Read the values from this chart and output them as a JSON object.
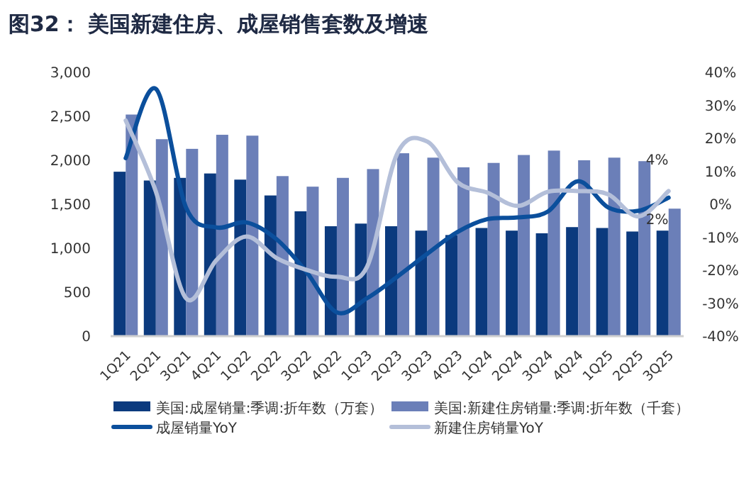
{
  "chart_data": {
    "type": "bar",
    "title": "图32：  美国新建住房、成屋销售套数及增速",
    "categories": [
      "1Q21",
      "2Q21",
      "3Q21",
      "4Q21",
      "1Q22",
      "2Q22",
      "3Q22",
      "4Q22",
      "1Q23",
      "2Q23",
      "3Q23",
      "4Q23",
      "1Q24",
      "2Q24",
      "3Q24",
      "4Q24",
      "1Q25",
      "2Q25",
      "3Q25"
    ],
    "series": [
      {
        "name": "美国:成屋销量:季调:折年数（万套）",
        "type": "bar",
        "color": "#0b3a7e",
        "values": [
          1870,
          1770,
          1800,
          1850,
          1780,
          1600,
          1420,
          1250,
          1280,
          1250,
          1200,
          1150,
          1230,
          1200,
          1170,
          1240,
          1230,
          1190,
          1200
        ]
      },
      {
        "name": "美国:新建住房销量:季调:折年数（千套）",
        "type": "bar",
        "color": "#6b7fb8",
        "values": [
          2520,
          2240,
          2130,
          2290,
          2280,
          1820,
          1700,
          1800,
          1900,
          2080,
          2030,
          1920,
          1970,
          2060,
          2110,
          2000,
          2030,
          1990,
          1450
        ]
      },
      {
        "name": "成屋销量YoY",
        "type": "line",
        "axis": "y2",
        "color": "#0b4f9c",
        "values": [
          14,
          35,
          -1,
          -7,
          -5.5,
          -10.6,
          -20.6,
          -32.8,
          -28.5,
          -22,
          -15,
          -8.4,
          -4.5,
          -4,
          -2.2,
          7,
          -1,
          -2,
          2
        ]
      },
      {
        "name": "新建住房销量YoY",
        "type": "line",
        "axis": "y2",
        "color": "#b4bfd9",
        "values": [
          25.4,
          3.8,
          -28.5,
          -17,
          -9.8,
          -16.3,
          -19.9,
          -22,
          -19,
          15.3,
          19,
          6.7,
          3.5,
          -0.5,
          3.8,
          4,
          3,
          -3.7,
          4
        ]
      }
    ],
    "ylim": [
      0,
      3000
    ],
    "yticks": [
      0,
      500,
      {
        "value": 1000,
        "label": "1,000"
      },
      {
        "value": 1500,
        "label": "1,500"
      },
      {
        "value": 2000,
        "label": "2,000"
      },
      {
        "value": 2500,
        "label": "2,500"
      },
      {
        "value": 3000,
        "label": "3,000"
      }
    ],
    "y2lim": [
      -40,
      40
    ],
    "y2ticks": [
      {
        "value": -40,
        "label": "-40%"
      },
      {
        "value": -30,
        "label": "-30%"
      },
      {
        "value": -20,
        "label": "-20%"
      },
      {
        "value": -10,
        "label": "-10%"
      },
      {
        "value": 0,
        "label": "0%"
      },
      {
        "value": 10,
        "label": "10%"
      },
      {
        "value": 20,
        "label": "20%"
      },
      {
        "value": 30,
        "label": "30%"
      },
      {
        "value": 40,
        "label": "40%"
      }
    ],
    "annotations": [
      "4%",
      "2%"
    ],
    "legend": "bottom",
    "grid": false
  }
}
